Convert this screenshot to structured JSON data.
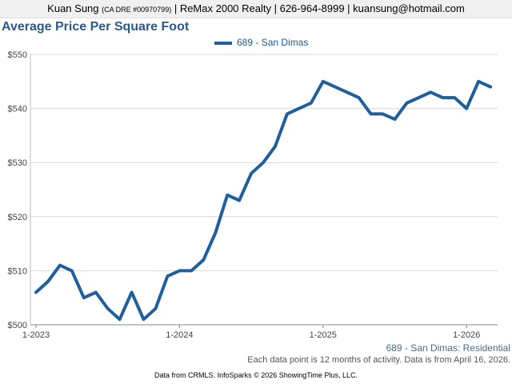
{
  "header": {
    "name": "Kuan Sung",
    "dre": "(CA DRE #00970799)",
    "rest": "| ReMax 2000 Realty | 626-964-8999 | kuansung@hotmail.com"
  },
  "colors": {
    "series": "#1f5f9e",
    "grid": "#d9d9d9",
    "title": "#2a5a8c"
  },
  "chart_data": {
    "type": "line",
    "title": "Average Price Per Square Foot",
    "xlabel": "",
    "ylabel": "",
    "ylim": [
      500,
      550
    ],
    "yticks": [
      "$500",
      "$510",
      "$520",
      "$530",
      "$540",
      "$550"
    ],
    "xticks": [
      "1-2023",
      "1-2024",
      "1-2025",
      "1-2026"
    ],
    "legend_position": "top-center",
    "grid": true,
    "x": [
      "1-2023",
      "2-2023",
      "3-2023",
      "4-2023",
      "5-2023",
      "6-2023",
      "7-2023",
      "8-2023",
      "9-2023",
      "10-2023",
      "11-2023",
      "12-2023",
      "1-2024",
      "2-2024",
      "3-2024",
      "4-2024",
      "5-2024",
      "6-2024",
      "7-2024",
      "8-2024",
      "9-2024",
      "10-2024",
      "11-2024",
      "12-2024",
      "1-2025",
      "2-2025",
      "3-2025",
      "4-2025",
      "5-2025",
      "6-2025",
      "7-2025",
      "8-2025",
      "9-2025",
      "10-2025",
      "11-2025",
      "12-2025",
      "1-2026",
      "2-2026",
      "3-2026"
    ],
    "series": [
      {
        "name": "689 - San Dimas",
        "values": [
          506,
          508,
          511,
          510,
          505,
          506,
          503,
          501,
          506,
          501,
          503,
          509,
          510,
          510,
          512,
          517,
          524,
          523,
          528,
          530,
          533,
          539,
          540,
          541,
          545,
          544,
          543,
          542,
          539,
          539,
          538,
          541,
          542,
          543,
          542,
          542,
          540,
          545,
          544
        ]
      }
    ]
  },
  "series_note": "689 - San Dimas: Residential",
  "activity_note": "Each data point is 12 months of activity. Data is from April 16, 2026.",
  "source_note": "Data from CRMLS. InfoSparks © 2026 ShowingTime Plus, LLC."
}
